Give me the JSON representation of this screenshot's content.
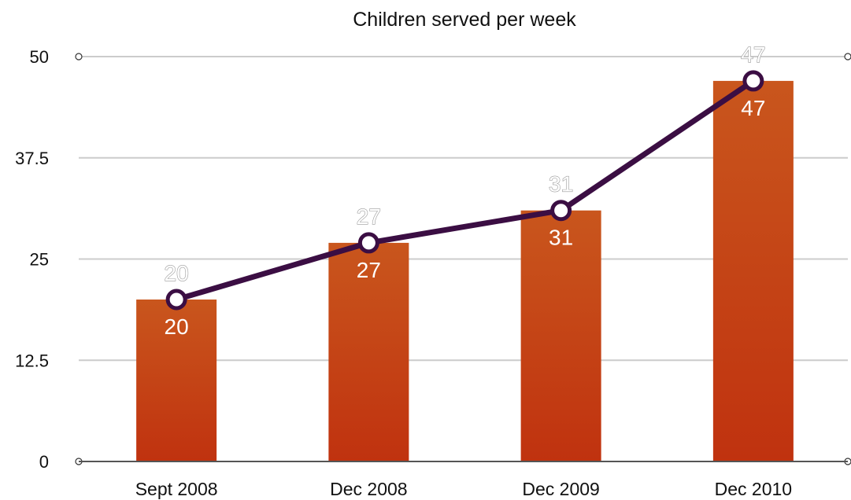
{
  "chart_data": {
    "type": "bar",
    "title": "Children served per week",
    "categories": [
      "Sept 2008",
      "Dec 2008",
      "Dec 2009",
      "Dec 2010"
    ],
    "series": [
      {
        "type": "bar",
        "values": [
          20,
          27,
          31,
          47
        ]
      },
      {
        "type": "line",
        "values": [
          20,
          27,
          31,
          47
        ]
      }
    ],
    "y_ticks": [
      "0",
      "12.5",
      "25",
      "37.5",
      "50"
    ],
    "ylim": [
      0,
      50
    ],
    "grid": true,
    "legend": "none",
    "colors": {
      "bar_top": "#c9561d",
      "bar_bottom": "#c0320f",
      "line": "#3b0e43",
      "grid": "#cccccc",
      "axis": "#555555"
    }
  }
}
